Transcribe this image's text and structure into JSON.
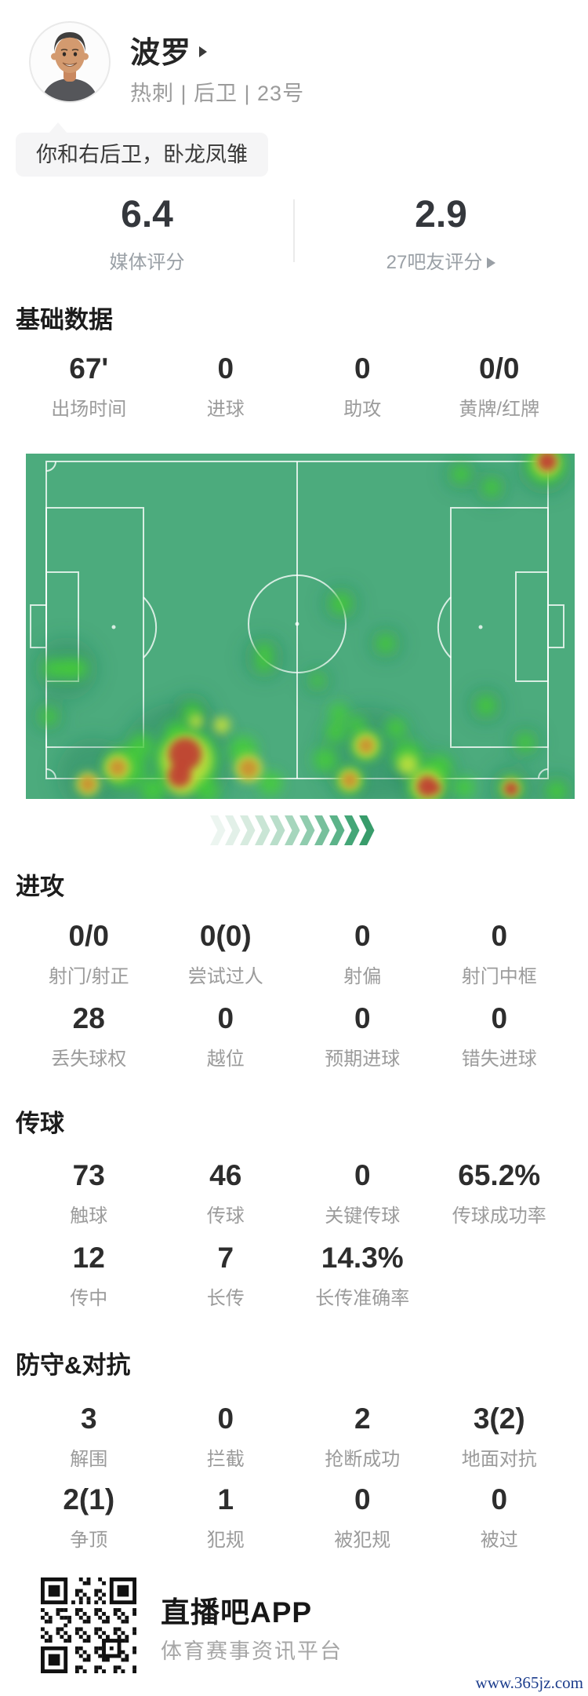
{
  "header": {
    "player_name": "波罗",
    "team_line": "热刺 | 后卫 | 23号",
    "quote": "你和右后卫，卧龙凤雏"
  },
  "icons": {
    "name_arrow": "right-triangle",
    "fans_rating_arrow": "right-triangle"
  },
  "ratings": {
    "media_value": "6.4",
    "media_label": "媒体评分",
    "fans_value": "2.9",
    "fans_label": "27吧友评分"
  },
  "sections": {
    "basic": {
      "title": "基础数据",
      "rows": [
        [
          {
            "value": "67'",
            "label": "出场时间"
          },
          {
            "value": "0",
            "label": "进球"
          },
          {
            "value": "0",
            "label": "助攻"
          },
          {
            "value": "0/0",
            "label": "黄牌/红牌"
          }
        ]
      ]
    },
    "attack": {
      "title": "进攻",
      "rows": [
        [
          {
            "value": "0/0",
            "label": "射门/射正"
          },
          {
            "value": "0(0)",
            "label": "尝试过人"
          },
          {
            "value": "0",
            "label": "射偏"
          },
          {
            "value": "0",
            "label": "射门中框"
          }
        ],
        [
          {
            "value": "28",
            "label": "丢失球权"
          },
          {
            "value": "0",
            "label": "越位"
          },
          {
            "value": "0",
            "label": "预期进球"
          },
          {
            "value": "0",
            "label": "错失进球"
          }
        ]
      ]
    },
    "passing": {
      "title": "传球",
      "rows": [
        [
          {
            "value": "73",
            "label": "触球"
          },
          {
            "value": "46",
            "label": "传球"
          },
          {
            "value": "0",
            "label": "关键传球"
          },
          {
            "value": "65.2%",
            "label": "传球成功率"
          }
        ],
        [
          {
            "value": "12",
            "label": "传中"
          },
          {
            "value": "7",
            "label": "长传"
          },
          {
            "value": "14.3%",
            "label": "长传准确率"
          }
        ]
      ]
    },
    "defense": {
      "title": "防守&对抗",
      "rows": [
        [
          {
            "value": "3",
            "label": "解围"
          },
          {
            "value": "0",
            "label": "拦截"
          },
          {
            "value": "2",
            "label": "抢断成功"
          },
          {
            "value": "3(2)",
            "label": "地面对抗"
          }
        ],
        [
          {
            "value": "2(1)",
            "label": "争顶"
          },
          {
            "value": "1",
            "label": "犯规"
          },
          {
            "value": "0",
            "label": "被犯规"
          },
          {
            "value": "0",
            "label": "被过"
          }
        ]
      ]
    }
  },
  "heatmap": {
    "pitch_color": "#4cab7d",
    "line_color": "rgba(255,255,255,0.78)",
    "palette": {
      "dg": "#1e7a52",
      "g": "#46d42f",
      "y": "#c8e23c",
      "o": "#cc8d2f",
      "r": "#bf4334"
    },
    "opacity": {
      "dg": 0.3,
      "g": 0.78,
      "y": 0.85,
      "o": 0.92,
      "r": 0.97
    },
    "spots": {
      "dg": [
        [
          695,
          18,
          34
        ],
        [
          588,
          26,
          20
        ],
        [
          627,
          43,
          20
        ],
        [
          435,
          191,
          22
        ],
        [
          85,
          274,
          40
        ],
        [
          62,
          335,
          19
        ],
        [
          337,
          260,
          26
        ],
        [
          405,
          290,
          16
        ],
        [
          492,
          242,
          20
        ],
        [
          620,
          321,
          22
        ],
        [
          670,
          368,
          19
        ],
        [
          225,
          390,
          72
        ],
        [
          120,
          410,
          48
        ],
        [
          245,
          330,
          24
        ],
        [
          470,
          385,
          62
        ],
        [
          545,
          420,
          40
        ],
        [
          652,
          426,
          28
        ],
        [
          710,
          430,
          22
        ]
      ],
      "g": [
        [
          696,
          14,
          25
        ],
        [
          588,
          26,
          12
        ],
        [
          627,
          43,
          12
        ],
        [
          435,
          191,
          14
        ],
        [
          66,
          274,
          12
        ],
        [
          100,
          274,
          12
        ],
        [
          85,
          274,
          13
        ],
        [
          62,
          335,
          11
        ],
        [
          337,
          252,
          11
        ],
        [
          337,
          268,
          11
        ],
        [
          405,
          289,
          9
        ],
        [
          492,
          242,
          12
        ],
        [
          620,
          321,
          13
        ],
        [
          670,
          368,
          12
        ],
        [
          160,
          400,
          26
        ],
        [
          195,
          429,
          16
        ],
        [
          225,
          355,
          14
        ],
        [
          245,
          330,
          13
        ],
        [
          180,
          372,
          15
        ],
        [
          265,
          430,
          15
        ],
        [
          345,
          420,
          15
        ],
        [
          310,
          378,
          18
        ],
        [
          238,
          390,
          40
        ],
        [
          432,
          330,
          12
        ],
        [
          428,
          355,
          13
        ],
        [
          415,
          390,
          15
        ],
        [
          455,
          345,
          11
        ],
        [
          505,
          350,
          13
        ],
        [
          520,
          385,
          19
        ],
        [
          560,
          400,
          17
        ],
        [
          467,
          372,
          18
        ],
        [
          446,
          416,
          16
        ],
        [
          592,
          425,
          13
        ],
        [
          545,
          422,
          24
        ],
        [
          652,
          426,
          15
        ],
        [
          710,
          430,
          13
        ]
      ],
      "y": [
        [
          697,
          12,
          17
        ],
        [
          238,
          390,
          32
        ],
        [
          232,
          415,
          20
        ],
        [
          150,
          400,
          17
        ],
        [
          112,
          421,
          15
        ],
        [
          317,
          401,
          18
        ],
        [
          283,
          346,
          11
        ],
        [
          250,
          341,
          9
        ],
        [
          467,
          372,
          16
        ],
        [
          446,
          416,
          14
        ],
        [
          545,
          423,
          20
        ],
        [
          520,
          396,
          13
        ],
        [
          652,
          426,
          12
        ]
      ],
      "o": [
        [
          150,
          400,
          11
        ],
        [
          112,
          421,
          10
        ],
        [
          317,
          401,
          12
        ],
        [
          467,
          372,
          10
        ],
        [
          446,
          416,
          10
        ]
      ],
      "r": [
        [
          698,
          10,
          12
        ],
        [
          236,
          383,
          21
        ],
        [
          229,
          410,
          15
        ],
        [
          545,
          424,
          13
        ],
        [
          554,
          426,
          8
        ],
        [
          652,
          427,
          9
        ]
      ]
    }
  },
  "chevrons": {
    "colors": [
      "#ecf5f0",
      "#e2f0e8",
      "#d7ebdf",
      "#c9e5d5",
      "#b9deca",
      "#a6d6bd",
      "#90ccae",
      "#77c09c",
      "#5cb389",
      "#44a677",
      "#389c6b"
    ]
  },
  "footer": {
    "app_name": "直播吧APP",
    "app_tagline": "体育赛事资讯平台",
    "watermark": "www.365jz.com"
  }
}
